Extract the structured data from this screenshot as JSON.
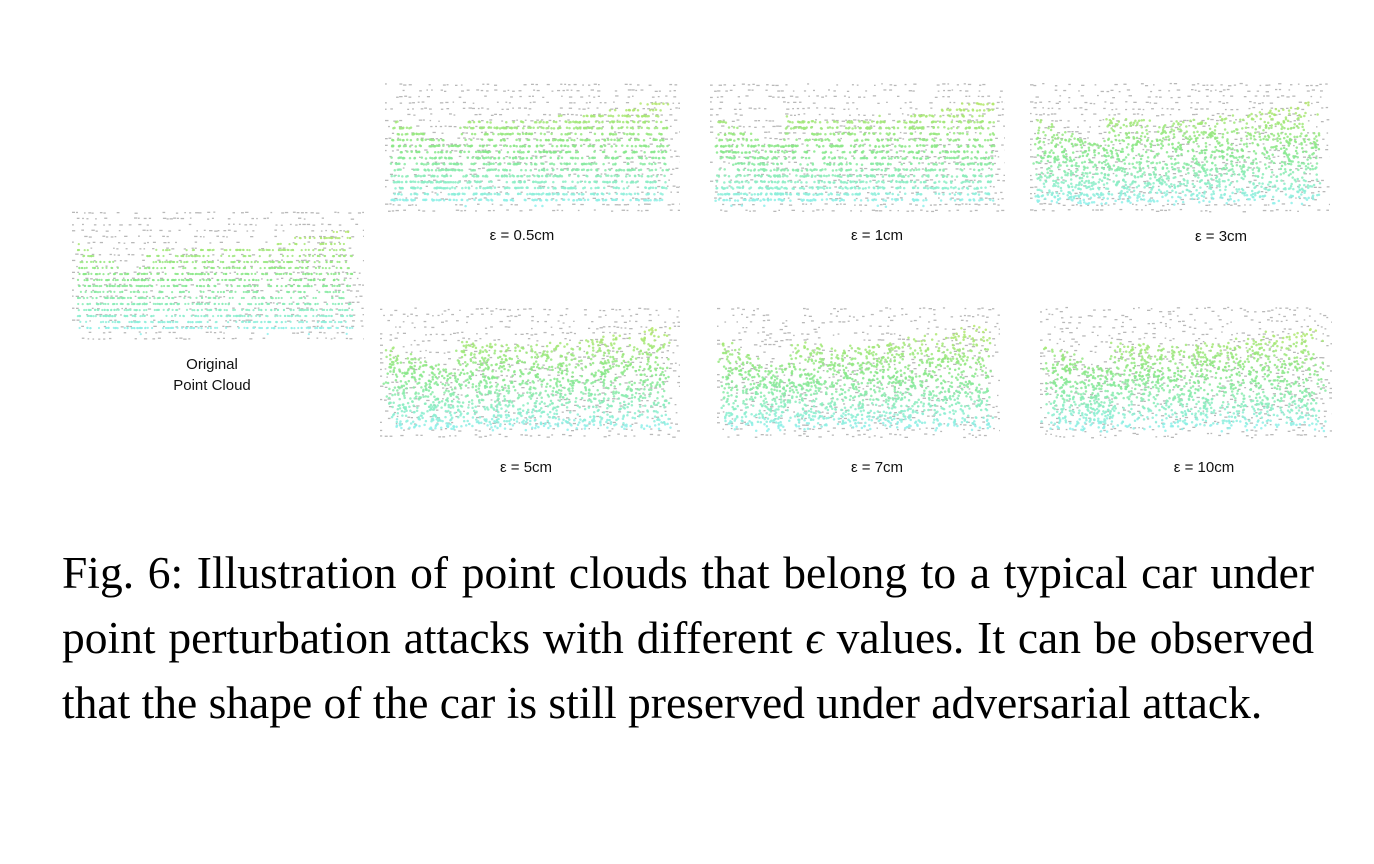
{
  "figure": {
    "panels": [
      {
        "id": "original",
        "label_line1": "Original",
        "label_line2": "Point Cloud",
        "epsilon_cm": 0
      },
      {
        "id": "eps-0-5",
        "label": "ε = 0.5cm",
        "epsilon_cm": 0.5
      },
      {
        "id": "eps-1",
        "label": "ε = 1cm",
        "epsilon_cm": 1
      },
      {
        "id": "eps-3",
        "label": "ε = 3cm",
        "epsilon_cm": 3
      },
      {
        "id": "eps-5",
        "label": "ε = 5cm",
        "epsilon_cm": 5
      },
      {
        "id": "eps-7",
        "label": "ε = 7cm",
        "epsilon_cm": 7
      },
      {
        "id": "eps-10",
        "label": "ε = 10cm",
        "epsilon_cm": 10
      }
    ],
    "colors": {
      "background_points": "#b8b8b8",
      "car_top": "#b8e86a",
      "car_mid": "#86e88a",
      "car_bottom": "#8ef0ec"
    }
  },
  "caption": {
    "prefix": "Fig. 6: Illustration of point clouds that belong to a typical car under point perturbation attacks with different ",
    "symbol": "ϵ",
    "suffix": " values. It can be observed that the shape of the car is still preserved under adversarial attack."
  }
}
